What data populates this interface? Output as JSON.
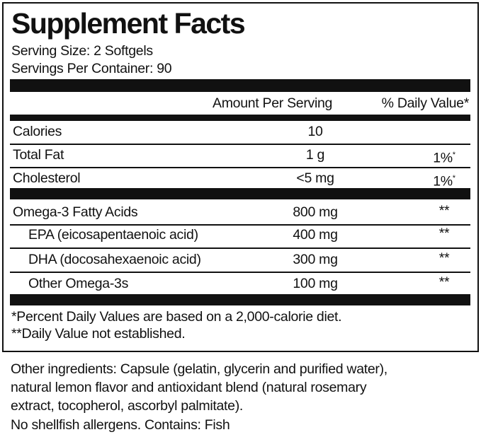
{
  "title": "Supplement Facts",
  "serving_size": "Serving Size: 2 Softgels",
  "servings_per_container": "Servings Per Container: 90",
  "header": {
    "amount": "Amount Per Serving",
    "daily_value": "% Daily Value*"
  },
  "rows": [
    {
      "name": "Calories",
      "amount": "10"
    },
    {
      "name": "Total Fat",
      "amount": "1 g",
      "daily_value": "1%",
      "mark": "*"
    },
    {
      "name": "Cholesterol",
      "amount": "<5 mg",
      "daily_value": "1%",
      "mark": "*"
    },
    {
      "name": "Omega-3 Fatty Acids",
      "amount": "800 mg",
      "daily_value": "**"
    },
    {
      "name": "EPA (eicosapentaenoic acid)",
      "amount": "400 mg",
      "daily_value": "**"
    },
    {
      "name": "DHA (docosahexaenoic acid)",
      "amount": "300 mg",
      "daily_value": "**"
    },
    {
      "name": "Other Omega-3s",
      "amount": "100 mg",
      "daily_value": "**"
    }
  ],
  "footnotes": [
    "*Percent Daily Values are based on a 2,000-calorie diet.",
    "**Daily Value not established."
  ],
  "other_ingredients": [
    "Other ingredients: Capsule (gelatin, glycerin and purified water),",
    "natural lemon flavor and antioxidant blend (natural rosemary",
    "extract, tocopherol, ascorbyl palmitate).",
    "No shellfish allergens. Contains: Fish"
  ]
}
